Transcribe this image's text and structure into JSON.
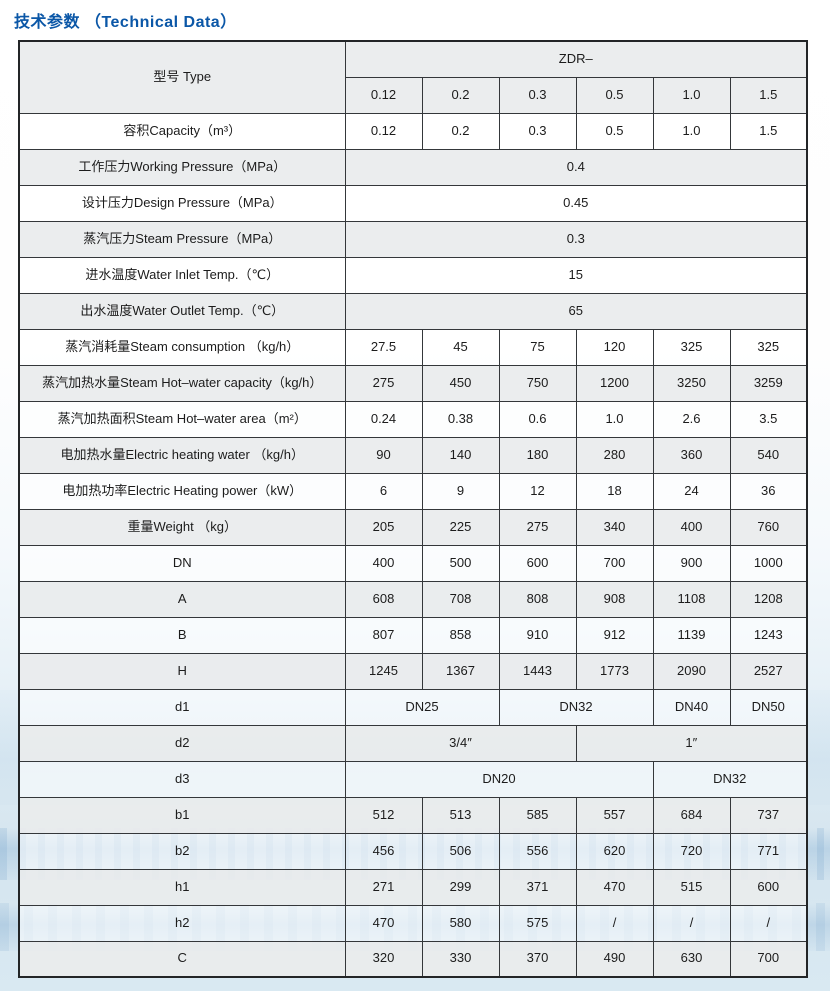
{
  "page_title": {
    "text": "技术参数 （Technical Data）"
  },
  "colors": {
    "title_blue": "#0b57a7",
    "row_shade": "#ebedee",
    "row_plain": "#ffffff",
    "table_border": "#2b2d2e",
    "page_bottom_blue": "#cfe2ec",
    "text": "#1c1c1c"
  },
  "table": {
    "header": {
      "type_label": "型号 Type",
      "series_label": "ZDR–",
      "sizes": [
        "0.12",
        "0.2",
        "0.3",
        "0.5",
        "1.0",
        "1.5"
      ]
    },
    "rows": [
      {
        "label": "容积Capacity（m³）",
        "align": "left",
        "cells": [
          {
            "t": "0.12"
          },
          {
            "t": "0.2"
          },
          {
            "t": "0.3"
          },
          {
            "t": "0.5"
          },
          {
            "t": "1.0"
          },
          {
            "t": "1.5"
          }
        ]
      },
      {
        "label": "工作压力Working Pressure（MPa）",
        "align": "left",
        "cells": [
          {
            "t": "0.4",
            "span": 6
          }
        ]
      },
      {
        "label": "设计压力Design Pressure（MPa）",
        "align": "left",
        "cells": [
          {
            "t": "0.45",
            "span": 6
          }
        ]
      },
      {
        "label": "蒸汽压力Steam Pressure（MPa）",
        "align": "left",
        "cells": [
          {
            "t": "0.3",
            "span": 6
          }
        ]
      },
      {
        "label": "进水温度Water Inlet Temp.（℃）",
        "align": "left",
        "cells": [
          {
            "t": "15",
            "span": 6
          }
        ]
      },
      {
        "label": "出水温度Water Outlet Temp.（℃）",
        "align": "left",
        "cells": [
          {
            "t": "65",
            "span": 6
          }
        ]
      },
      {
        "label": "蒸汽消耗量Steam consumption （kg/h）",
        "align": "left",
        "cells": [
          {
            "t": "27.5"
          },
          {
            "t": "45"
          },
          {
            "t": "75"
          },
          {
            "t": "120"
          },
          {
            "t": "325"
          },
          {
            "t": "325"
          }
        ]
      },
      {
        "label": "蒸汽加热水量Steam Hot–water capacity（kg/h）",
        "align": "left",
        "cells": [
          {
            "t": "275"
          },
          {
            "t": "450"
          },
          {
            "t": "750"
          },
          {
            "t": "1200"
          },
          {
            "t": "3250"
          },
          {
            "t": "3259"
          }
        ]
      },
      {
        "label": "蒸汽加热面积Steam Hot–water area（m²）",
        "align": "left",
        "cells": [
          {
            "t": "0.24"
          },
          {
            "t": "0.38"
          },
          {
            "t": "0.6"
          },
          {
            "t": "1.0"
          },
          {
            "t": "2.6"
          },
          {
            "t": "3.5"
          }
        ]
      },
      {
        "label": "电加热水量Electric heating water （kg/h）",
        "align": "left",
        "cells": [
          {
            "t": "90"
          },
          {
            "t": "140"
          },
          {
            "t": "180"
          },
          {
            "t": "280"
          },
          {
            "t": "360"
          },
          {
            "t": "540"
          }
        ]
      },
      {
        "label": "电加热功率Electric Heating power（kW）",
        "align": "left",
        "cells": [
          {
            "t": "6"
          },
          {
            "t": "9"
          },
          {
            "t": "12"
          },
          {
            "t": "18"
          },
          {
            "t": "24"
          },
          {
            "t": "36"
          }
        ]
      },
      {
        "label": "重量Weight （kg）",
        "align": "left",
        "cells": [
          {
            "t": "205"
          },
          {
            "t": "225"
          },
          {
            "t": "275"
          },
          {
            "t": "340"
          },
          {
            "t": "400"
          },
          {
            "t": "760"
          }
        ]
      },
      {
        "label": "DN",
        "align": "center",
        "cells": [
          {
            "t": "400"
          },
          {
            "t": "500"
          },
          {
            "t": "600"
          },
          {
            "t": "700"
          },
          {
            "t": "900"
          },
          {
            "t": "1000"
          }
        ]
      },
      {
        "label": "A",
        "align": "center",
        "cells": [
          {
            "t": "608"
          },
          {
            "t": "708"
          },
          {
            "t": "808"
          },
          {
            "t": "908"
          },
          {
            "t": "1108"
          },
          {
            "t": "1208"
          }
        ]
      },
      {
        "label": "B",
        "align": "center",
        "cells": [
          {
            "t": "807"
          },
          {
            "t": "858"
          },
          {
            "t": "910"
          },
          {
            "t": "912"
          },
          {
            "t": "1139"
          },
          {
            "t": "1243"
          }
        ]
      },
      {
        "label": "H",
        "align": "center",
        "cells": [
          {
            "t": "1245"
          },
          {
            "t": "1367"
          },
          {
            "t": "1443"
          },
          {
            "t": "1773"
          },
          {
            "t": "2090"
          },
          {
            "t": "2527"
          }
        ]
      },
      {
        "label": "d1",
        "align": "center",
        "cells": [
          {
            "t": "DN25",
            "span": 2
          },
          {
            "t": "DN32",
            "span": 2
          },
          {
            "t": "DN40"
          },
          {
            "t": "DN50"
          }
        ]
      },
      {
        "label": "d2",
        "align": "center",
        "cells": [
          {
            "t": "3/4″",
            "span": 3
          },
          {
            "t": "1″",
            "span": 3
          }
        ]
      },
      {
        "label": "d3",
        "align": "center",
        "cells": [
          {
            "t": "DN20",
            "span": 4
          },
          {
            "t": "DN32",
            "span": 2
          }
        ]
      },
      {
        "label": "b1",
        "align": "center",
        "cells": [
          {
            "t": "512"
          },
          {
            "t": "513"
          },
          {
            "t": "585"
          },
          {
            "t": "557"
          },
          {
            "t": "684"
          },
          {
            "t": "737"
          }
        ]
      },
      {
        "label": "b2",
        "align": "center",
        "cells": [
          {
            "t": "456"
          },
          {
            "t": "506"
          },
          {
            "t": "556"
          },
          {
            "t": "620"
          },
          {
            "t": "720"
          },
          {
            "t": "771"
          }
        ]
      },
      {
        "label": "h1",
        "align": "center",
        "cells": [
          {
            "t": "271"
          },
          {
            "t": "299"
          },
          {
            "t": "371"
          },
          {
            "t": "470"
          },
          {
            "t": "515"
          },
          {
            "t": "600"
          }
        ]
      },
      {
        "label": "h2",
        "align": "center",
        "cells": [
          {
            "t": "470"
          },
          {
            "t": "580"
          },
          {
            "t": "575"
          },
          {
            "t": "/"
          },
          {
            "t": "/"
          },
          {
            "t": "/"
          }
        ]
      },
      {
        "label": "C",
        "align": "center",
        "cells": [
          {
            "t": "320"
          },
          {
            "t": "330"
          },
          {
            "t": "370"
          },
          {
            "t": "490"
          },
          {
            "t": "630"
          },
          {
            "t": "700"
          }
        ]
      }
    ]
  }
}
